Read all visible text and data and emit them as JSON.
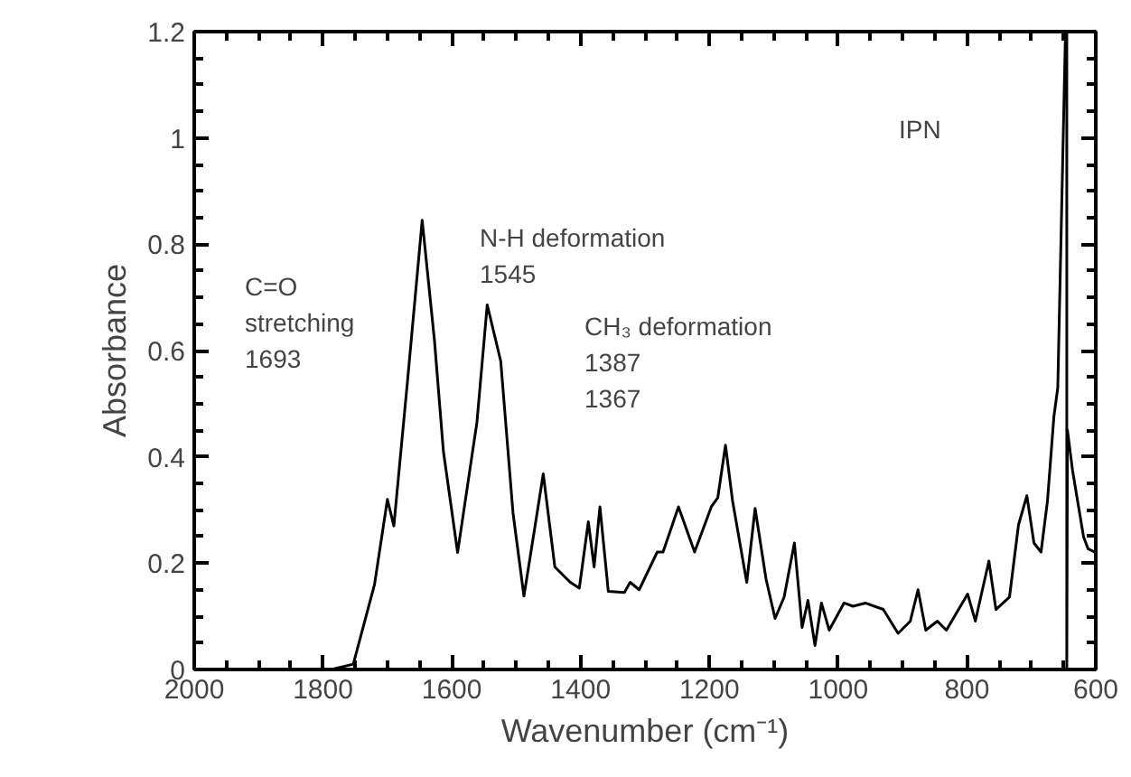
{
  "chart_data": {
    "type": "line",
    "xlabel": "Wavenumber (cm⁻¹)",
    "ylabel": "Absorbance",
    "xlim": [
      2000,
      600
    ],
    "ylim": [
      0,
      1.2
    ],
    "xticks": [
      2000,
      {
        "value": 1950,
        "label": null
      },
      {
        "value": 1900,
        "label": null
      },
      {
        "value": 1850,
        "label": null
      },
      1800,
      {
        "value": 1750,
        "label": null
      },
      {
        "value": 1700,
        "label": null
      },
      {
        "value": 1650,
        "label": null
      },
      1600,
      {
        "value": 1550,
        "label": null
      },
      {
        "value": 1500,
        "label": null
      },
      {
        "value": 1450,
        "label": null
      },
      1400,
      {
        "value": 1350,
        "label": null
      },
      {
        "value": 1300,
        "label": null
      },
      {
        "value": 1250,
        "label": null
      },
      1200,
      {
        "value": 1150,
        "label": null
      },
      {
        "value": 1100,
        "label": null
      },
      {
        "value": 1050,
        "label": null
      },
      1000,
      {
        "value": 950,
        "label": null
      },
      {
        "value": 900,
        "label": null
      },
      {
        "value": 850,
        "label": null
      },
      800,
      {
        "value": 750,
        "label": null
      },
      {
        "value": 700,
        "label": null
      },
      {
        "value": 650,
        "label": null
      },
      600
    ],
    "yticks": [
      0,
      {
        "value": 0.05,
        "label": null
      },
      {
        "value": 0.1,
        "label": null
      },
      {
        "value": 0.15,
        "label": null
      },
      0.2,
      {
        "value": 0.25,
        "label": null
      },
      {
        "value": 0.3,
        "label": null
      },
      {
        "value": 0.35,
        "label": null
      },
      0.4,
      {
        "value": 0.45,
        "label": null
      },
      {
        "value": 0.5,
        "label": null
      },
      {
        "value": 0.55,
        "label": null
      },
      0.6,
      {
        "value": 0.65,
        "label": null
      },
      {
        "value": 0.7,
        "label": null
      },
      {
        "value": 0.75,
        "label": null
      },
      0.8,
      {
        "value": 0.85,
        "label": null
      },
      {
        "value": 0.9,
        "label": null
      },
      {
        "value": 0.95,
        "label": null
      },
      1,
      {
        "value": 1.05,
        "label": null
      },
      {
        "value": 1.1,
        "label": null
      },
      {
        "value": 1.15,
        "label": null
      },
      1.2
    ],
    "grid": false,
    "marker": "none",
    "line_style": "solid",
    "series": [
      {
        "color": "#000000",
        "x": [
          2000,
          1787,
          1753,
          1720,
          1700,
          1690,
          1669,
          1646,
          1627,
          1613,
          1591,
          1561,
          1545,
          1524,
          1505,
          1488,
          1472,
          1458,
          1440,
          1416,
          1402,
          1388,
          1379,
          1370,
          1357,
          1332,
          1323,
          1309,
          1281,
          1272,
          1248,
          1223,
          1197,
          1187,
          1175,
          1164,
          1142,
          1129,
          1112,
          1098,
          1084,
          1068,
          1056,
          1047,
          1036,
          1026,
          1014,
          991,
          977,
          958,
          930,
          907,
          888,
          876,
          864,
          846,
          832,
          813,
          799,
          787,
          766,
          755,
          734,
          720,
          707,
          696,
          685,
          675,
          665,
          659,
          647,
          645,
          645,
          644,
          636,
          619,
          612,
          600
        ],
        "values": [
          0,
          0,
          0.01,
          0.16,
          0.32,
          0.27,
          0.54,
          0.845,
          0.62,
          0.41,
          0.22,
          0.465,
          0.686,
          0.58,
          0.295,
          0.138,
          0.26,
          0.368,
          0.193,
          0.164,
          0.153,
          0.278,
          0.193,
          0.306,
          0.147,
          0.145,
          0.164,
          0.15,
          0.221,
          0.221,
          0.306,
          0.221,
          0.306,
          0.323,
          0.422,
          0.317,
          0.164,
          0.303,
          0.17,
          0.096,
          0.136,
          0.238,
          0.079,
          0.13,
          0.045,
          0.125,
          0.074,
          0.125,
          0.119,
          0.125,
          0.113,
          0.068,
          0.091,
          0.15,
          0.074,
          0.091,
          0.074,
          0.113,
          0.142,
          0.091,
          0.204,
          0.113,
          0.136,
          0.272,
          0.327,
          0.238,
          0.221,
          0.317,
          0.476,
          0.53,
          1.2,
          1.2,
          0,
          0.45,
          0.374,
          0.25,
          0.227,
          0.22
        ]
      }
    ],
    "annotations": [
      "IPN",
      "C=O\nstretching\n1693",
      "N-H  deformation\n1545",
      "CH₃  deformation\n1387\n1367"
    ]
  }
}
